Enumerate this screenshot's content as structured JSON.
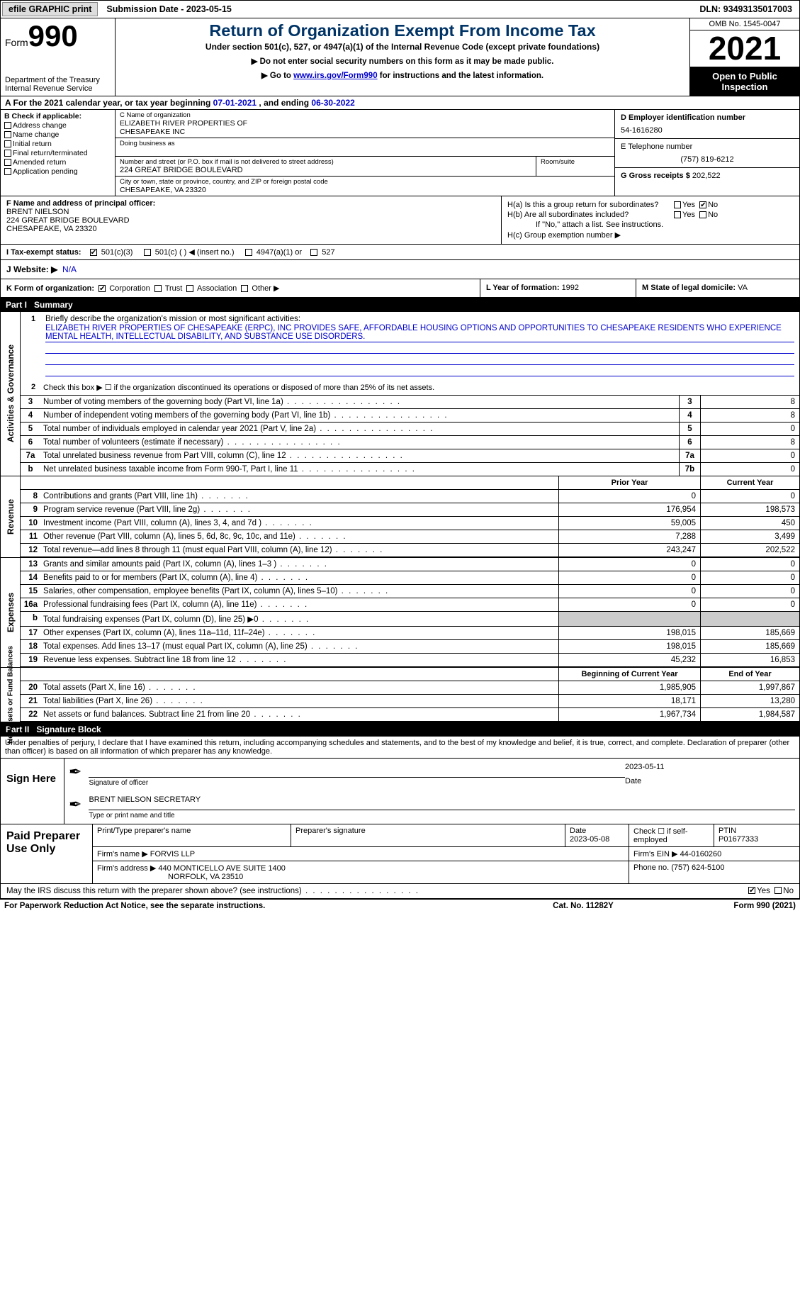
{
  "topbar": {
    "efile": "efile GRAPHIC print",
    "subdate_label": "Submission Date - ",
    "subdate": "2023-05-15",
    "dln_label": "DLN: ",
    "dln": "93493135017003"
  },
  "header": {
    "form": "Form",
    "num": "990",
    "dept": "Department of the Treasury Internal Revenue Service",
    "title": "Return of Organization Exempt From Income Tax",
    "sub": "Under section 501(c), 527, or 4947(a)(1) of the Internal Revenue Code (except private foundations)",
    "instr1": "▶ Do not enter social security numbers on this form as it may be made public.",
    "instr2_pre": "▶ Go to ",
    "instr2_link": "www.irs.gov/Form990",
    "instr2_post": " for instructions and the latest information.",
    "omb": "OMB No. 1545-0047",
    "year": "2021",
    "otp": "Open to Public Inspection"
  },
  "lineA": {
    "pre": "A For the 2021 calendar year, or tax year beginning ",
    "begin": "07-01-2021",
    "mid": "  , and ending ",
    "end": "06-30-2022"
  },
  "boxB": {
    "label": "B Check if applicable:",
    "items": [
      "Address change",
      "Name change",
      "Initial return",
      "Final return/terminated",
      "Amended return",
      "Application pending"
    ]
  },
  "boxC": {
    "name_lbl": "C Name of organization",
    "name1": "ELIZABETH RIVER PROPERTIES OF",
    "name2": "CHESAPEAKE INC",
    "dba_lbl": "Doing business as",
    "addr_lbl": "Number and street (or P.O. box if mail is not delivered to street address)",
    "addr": "224 GREAT BRIDGE BOULEVARD",
    "room_lbl": "Room/suite",
    "city_lbl": "City or town, state or province, country, and ZIP or foreign postal code",
    "city": "CHESAPEAKE, VA  23320"
  },
  "boxD": {
    "lbl": "D Employer identification number",
    "val": "54-1616280"
  },
  "boxE": {
    "lbl": "E Telephone number",
    "val": "(757) 819-6212"
  },
  "boxG": {
    "lbl": "G Gross receipts $ ",
    "val": "202,522"
  },
  "boxF": {
    "lbl": "F  Name and address of principal officer:",
    "n": "BRENT NIELSON",
    "a1": "224 GREAT BRIDGE BOULEVARD",
    "a2": "CHESAPEAKE, VA  23320"
  },
  "boxH": {
    "a_lbl": "H(a)  Is this a group return for subordinates?",
    "b_lbl": "H(b)  Are all subordinates included?",
    "b_note": "If \"No,\" attach a list. See instructions.",
    "c_lbl": "H(c)  Group exemption number ▶",
    "yes": "Yes",
    "no": "No"
  },
  "boxI": {
    "lbl": "I    Tax-exempt status:",
    "o1": "501(c)(3)",
    "o2": "501(c) (  ) ◀ (insert no.)",
    "o3": "4947(a)(1) or",
    "o4": "527"
  },
  "boxJ": {
    "lbl": "J   Website: ▶",
    "val": "N/A"
  },
  "boxK": {
    "lbl": "K Form of organization:",
    "o1": "Corporation",
    "o2": "Trust",
    "o3": "Association",
    "o4": "Other ▶"
  },
  "boxL": {
    "lbl": "L Year of formation: ",
    "val": "1992"
  },
  "boxM": {
    "lbl": "M State of legal domicile: ",
    "val": "VA"
  },
  "parts": {
    "p1": "Part I",
    "p1t": "Summary",
    "p2": "Part II",
    "p2t": "Signature Block"
  },
  "summary": {
    "q1": "Briefly describe the organization's mission or most significant activities:",
    "mission": "ELIZABETH RIVER PROPERTIES OF CHESAPEAKE (ERPC), INC PROVIDES SAFE, AFFORDABLE HOUSING OPTIONS AND OPPORTUNITIES TO CHESAPEAKE RESIDENTS WHO EXPERIENCE MENTAL HEALTH, INTELLECTUAL DISABILITY, AND SUBSTANCE USE DISORDERS.",
    "q2": "Check this box ▶ ☐  if the organization discontinued its operations or disposed of more than 25% of its net assets.",
    "lines": [
      {
        "n": "3",
        "t": "Number of voting members of the governing body (Part VI, line 1a)",
        "box": "3",
        "v": "8"
      },
      {
        "n": "4",
        "t": "Number of independent voting members of the governing body (Part VI, line 1b)",
        "box": "4",
        "v": "8"
      },
      {
        "n": "5",
        "t": "Total number of individuals employed in calendar year 2021 (Part V, line 2a)",
        "box": "5",
        "v": "0"
      },
      {
        "n": "6",
        "t": "Total number of volunteers (estimate if necessary)",
        "box": "6",
        "v": "8"
      },
      {
        "n": "7a",
        "t": "Total unrelated business revenue from Part VIII, column (C), line 12",
        "box": "7a",
        "v": "0"
      },
      {
        "n": "b",
        "t": "Net unrelated business taxable income from Form 990-T, Part I, line 11",
        "box": "7b",
        "v": "0"
      }
    ],
    "hdr_prior": "Prior Year",
    "hdr_curr": "Current Year",
    "rev": [
      {
        "n": "8",
        "t": "Contributions and grants (Part VIII, line 1h)",
        "p": "0",
        "c": "0"
      },
      {
        "n": "9",
        "t": "Program service revenue (Part VIII, line 2g)",
        "p": "176,954",
        "c": "198,573"
      },
      {
        "n": "10",
        "t": "Investment income (Part VIII, column (A), lines 3, 4, and 7d )",
        "p": "59,005",
        "c": "450"
      },
      {
        "n": "11",
        "t": "Other revenue (Part VIII, column (A), lines 5, 6d, 8c, 9c, 10c, and 11e)",
        "p": "7,288",
        "c": "3,499"
      },
      {
        "n": "12",
        "t": "Total revenue—add lines 8 through 11 (must equal Part VIII, column (A), line 12)",
        "p": "243,247",
        "c": "202,522"
      }
    ],
    "exp": [
      {
        "n": "13",
        "t": "Grants and similar amounts paid (Part IX, column (A), lines 1–3 )",
        "p": "0",
        "c": "0"
      },
      {
        "n": "14",
        "t": "Benefits paid to or for members (Part IX, column (A), line 4)",
        "p": "0",
        "c": "0"
      },
      {
        "n": "15",
        "t": "Salaries, other compensation, employee benefits (Part IX, column (A), lines 5–10)",
        "p": "0",
        "c": "0"
      },
      {
        "n": "16a",
        "t": "Professional fundraising fees (Part IX, column (A), line 11e)",
        "p": "0",
        "c": "0"
      },
      {
        "n": "b",
        "t": "Total fundraising expenses (Part IX, column (D), line 25) ▶0",
        "p": "",
        "c": "",
        "grey": true
      },
      {
        "n": "17",
        "t": "Other expenses (Part IX, column (A), lines 11a–11d, 11f–24e)",
        "p": "198,015",
        "c": "185,669"
      },
      {
        "n": "18",
        "t": "Total expenses. Add lines 13–17 (must equal Part IX, column (A), line 25)",
        "p": "198,015",
        "c": "185,669"
      },
      {
        "n": "19",
        "t": "Revenue less expenses. Subtract line 18 from line 12",
        "p": "45,232",
        "c": "16,853"
      }
    ],
    "hdr_beg": "Beginning of Current Year",
    "hdr_end": "End of Year",
    "net": [
      {
        "n": "20",
        "t": "Total assets (Part X, line 16)",
        "p": "1,985,905",
        "c": "1,997,867"
      },
      {
        "n": "21",
        "t": "Total liabilities (Part X, line 26)",
        "p": "18,171",
        "c": "13,280"
      },
      {
        "n": "22",
        "t": "Net assets or fund balances. Subtract line 21 from line 20",
        "p": "1,967,734",
        "c": "1,984,587"
      }
    ],
    "vlab1": "Activities & Governance",
    "vlab2": "Revenue",
    "vlab3": "Expenses",
    "vlab4": "Net Assets or Fund Balances"
  },
  "penalty": "Under penalties of perjury, I declare that I have examined this return, including accompanying schedules and statements, and to the best of my knowledge and belief, it is true, correct, and complete. Declaration of preparer (other than officer) is based on all information of which preparer has any knowledge.",
  "sign": {
    "here": "Sign Here",
    "sig_lbl": "Signature of officer",
    "date_lbl": "Date",
    "date": "2023-05-11",
    "name": "BRENT NIELSON  SECRETARY",
    "name_lbl": "Type or print name and title"
  },
  "paid": {
    "lbl": "Paid Preparer Use Only",
    "h1": "Print/Type preparer's name",
    "h2": "Preparer's signature",
    "h3": "Date",
    "h3v": "2023-05-08",
    "h4": "Check ☐ if self-employed",
    "h5": "PTIN",
    "h5v": "P01677333",
    "firm_lbl": "Firm's name      ▶ ",
    "firm": "FORVIS LLP",
    "ein_lbl": "Firm's EIN ▶ ",
    "ein": "44-0160260",
    "addr_lbl": "Firm's address ▶ ",
    "addr1": "440 MONTICELLO AVE SUITE 1400",
    "addr2": "NORFOLK, VA  23510",
    "ph_lbl": "Phone no. ",
    "ph": "(757) 624-5100"
  },
  "discuss": {
    "q": "May the IRS discuss this return with the preparer shown above? (see instructions)",
    "yes": "Yes",
    "no": "No"
  },
  "foot": {
    "l": "For Paperwork Reduction Act Notice, see the separate instructions.",
    "c": "Cat. No. 11282Y",
    "r": "Form 990 (2021)"
  }
}
